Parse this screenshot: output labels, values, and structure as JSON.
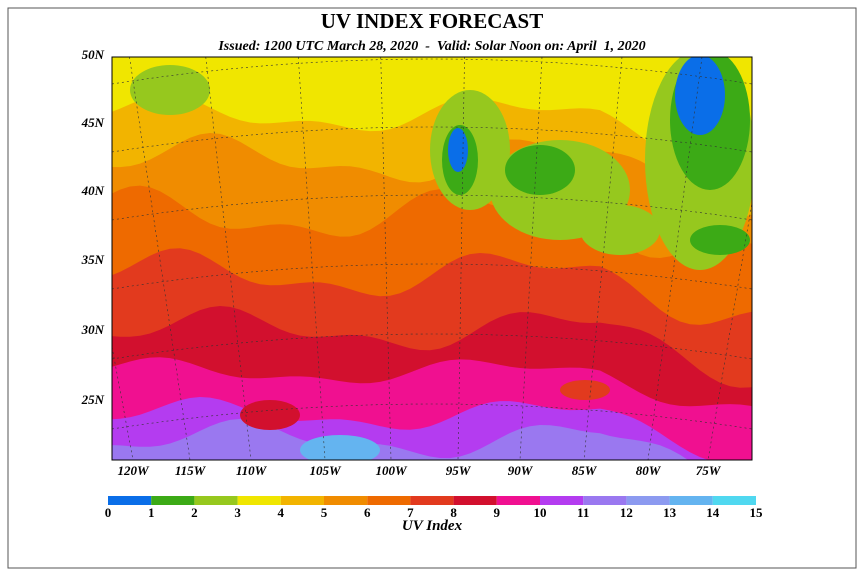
{
  "header": {
    "title": "UV INDEX FORECAST",
    "subtitle": "Issued: 1200 UTC March 28, 2020  -  Valid: Solar Noon on: April  1, 2020"
  },
  "map": {
    "lat_labels": [
      "50N",
      "45N",
      "40N",
      "35N",
      "30N",
      "25N"
    ],
    "lon_labels": [
      "120W",
      "115W",
      "110W",
      "105W",
      "100W",
      "95W",
      "90W",
      "85W",
      "80W",
      "75W"
    ]
  },
  "colorbar": {
    "label": "UV Index",
    "ticks": [
      0,
      1,
      2,
      3,
      4,
      5,
      6,
      7,
      8,
      9,
      10,
      11,
      12,
      13,
      14,
      15
    ],
    "colors": [
      "#0a6ee8",
      "#3caa16",
      "#96c81e",
      "#f0e600",
      "#f2b400",
      "#f08c00",
      "#ee6a00",
      "#e23a1e",
      "#d2102e",
      "#f01090",
      "#b43cf0",
      "#9a78f0",
      "#8c9af0",
      "#64b4f0",
      "#50d8f0"
    ]
  }
}
